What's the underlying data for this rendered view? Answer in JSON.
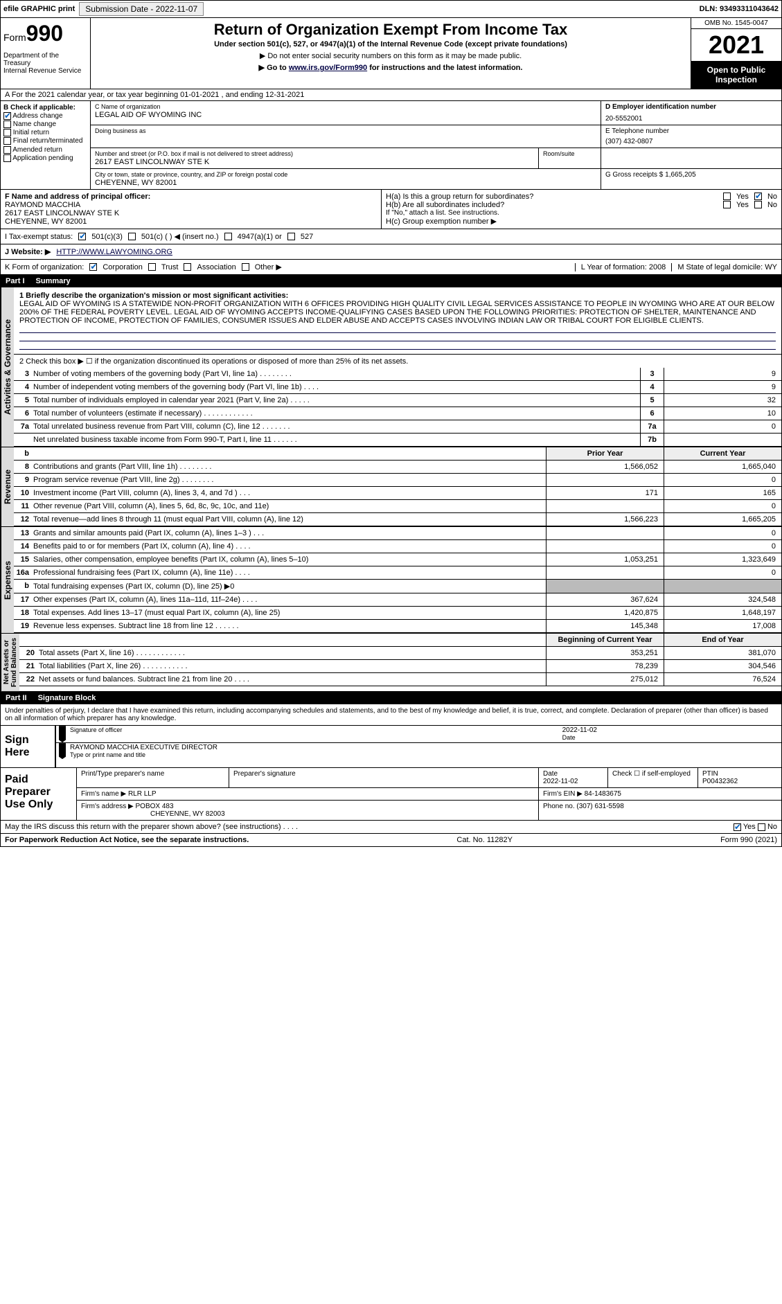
{
  "topbar": {
    "efile": "efile GRAPHIC print",
    "submission_label": "Submission Date - 2022-11-07",
    "dln": "DLN: 93493311043642"
  },
  "header": {
    "form_word": "Form",
    "form_num": "990",
    "dept": "Department of the Treasury\nInternal Revenue Service",
    "title": "Return of Organization Exempt From Income Tax",
    "subtitle": "Under section 501(c), 527, or 4947(a)(1) of the Internal Revenue Code (except private foundations)",
    "note1": "▶ Do not enter social security numbers on this form as it may be made public.",
    "note2_pre": "▶ Go to ",
    "note2_link": "www.irs.gov/Form990",
    "note2_post": " for instructions and the latest information.",
    "omb": "OMB No. 1545-0047",
    "year": "2021",
    "open": "Open to Public Inspection"
  },
  "taxyear": "A For the 2021 calendar year, or tax year beginning 01-01-2021  , and ending 12-31-2021",
  "boxB": {
    "label": "B Check if applicable:",
    "items": [
      "Address change",
      "Name change",
      "Initial return",
      "Final return/terminated",
      "Amended return",
      "Application pending"
    ],
    "checked": [
      true,
      false,
      false,
      false,
      false,
      false
    ]
  },
  "boxC": {
    "name_label": "C Name of organization",
    "name": "LEGAL AID OF WYOMING INC",
    "dba_label": "Doing business as",
    "dba": "",
    "street_label": "Number and street (or P.O. box if mail is not delivered to street address)",
    "street": "2617 EAST LINCOLNWAY STE K",
    "room_label": "Room/suite",
    "city_label": "City or town, state or province, country, and ZIP or foreign postal code",
    "city": "CHEYENNE, WY  82001"
  },
  "boxD": {
    "label": "D Employer identification number",
    "value": "20-5552001"
  },
  "boxE": {
    "label": "E Telephone number",
    "value": "(307) 432-0807"
  },
  "boxG": {
    "label": "G Gross receipts $",
    "value": "1,665,205"
  },
  "officer": {
    "label": "F  Name and address of principal officer:",
    "name": "RAYMOND MACCHIA",
    "addr1": "2617 EAST LINCOLNWAY STE K",
    "addr2": "CHEYENNE, WY  82001"
  },
  "boxH": {
    "ha": "H(a)  Is this a group return for subordinates?",
    "hb": "H(b)  Are all subordinates included?",
    "hb_note": "If \"No,\" attach a list. See instructions.",
    "hc": "H(c)  Group exemption number ▶",
    "yes": "Yes",
    "no": "No"
  },
  "status": {
    "label": "I  Tax-exempt status:",
    "opts": [
      "501(c)(3)",
      "501(c) (  ) ◀ (insert no.)",
      "4947(a)(1) or",
      "527"
    ]
  },
  "website": {
    "label": "J  Website: ▶",
    "value": "HTTP://WWW.LAWYOMING.ORG"
  },
  "korg": {
    "k": "K Form of organization:",
    "opts": [
      "Corporation",
      "Trust",
      "Association",
      "Other ▶"
    ],
    "l_label": "L Year of formation:",
    "l_val": "2008",
    "m_label": "M State of legal domicile:",
    "m_val": "WY"
  },
  "part1": {
    "no": "Part I",
    "title": "Summary"
  },
  "mission": {
    "lead": "1  Briefly describe the organization's mission or most significant activities:",
    "text": "LEGAL AID OF WYOMING IS A STATEWIDE NON-PROFIT ORGANIZATION WITH 6 OFFICES PROVIDING HIGH QUALITY CIVIL LEGAL SERVICES ASSISTANCE TO PEOPLE IN WYOMING WHO ARE AT OUR BELOW 200% OF THE FEDERAL POVERTY LEVEL. LEGAL AID OF WYOMING ACCEPTS INCOME-QUALIFYING CASES BASED UPON THE FOLLOWING PRIORITIES: PROTECTION OF SHELTER, MAINTENANCE AND PROTECTION OF INCOME, PROTECTION OF FAMILIES, CONSUMER ISSUES AND ELDER ABUSE AND ACCEPTS CASES INVOLVING INDIAN LAW OR TRIBAL COURT FOR ELIGIBLE CLIENTS."
  },
  "line2": "2  Check this box ▶ ☐ if the organization discontinued its operations or disposed of more than 25% of its net assets.",
  "gov_rows": [
    {
      "n": "3",
      "d": "Number of voting members of the governing body (Part VI, line 1a)  .   .   .   .   .   .   .   .",
      "box": "3",
      "v": "9"
    },
    {
      "n": "4",
      "d": "Number of independent voting members of the governing body (Part VI, line 1b)  .   .   .   .",
      "box": "4",
      "v": "9"
    },
    {
      "n": "5",
      "d": "Total number of individuals employed in calendar year 2021 (Part V, line 2a)  .   .   .   .   .",
      "box": "5",
      "v": "32"
    },
    {
      "n": "6",
      "d": "Total number of volunteers (estimate if necessary)  .   .   .   .   .   .   .   .   .   .   .   .",
      "box": "6",
      "v": "10"
    },
    {
      "n": "7a",
      "d": "Total unrelated business revenue from Part VIII, column (C), line 12  .   .   .   .   .   .   .",
      "box": "7a",
      "v": "0"
    },
    {
      "n": "",
      "d": "Net unrelated business taxable income from Form 990-T, Part I, line 11  .   .   .   .   .   .",
      "box": "7b",
      "v": ""
    }
  ],
  "fin_headers": {
    "b": "b",
    "prior": "Prior Year",
    "curr": "Current Year"
  },
  "rev_rows": [
    {
      "n": "8",
      "d": "Contributions and grants (Part VIII, line 1h)  .   .   .   .   .   .   .   .",
      "p": "1,566,052",
      "c": "1,665,040"
    },
    {
      "n": "9",
      "d": "Program service revenue (Part VIII, line 2g)  .   .   .   .   .   .   .   .",
      "p": "",
      "c": "0"
    },
    {
      "n": "10",
      "d": "Investment income (Part VIII, column (A), lines 3, 4, and 7d )  .   .   .",
      "p": "171",
      "c": "165"
    },
    {
      "n": "11",
      "d": "Other revenue (Part VIII, column (A), lines 5, 6d, 8c, 9c, 10c, and 11e)",
      "p": "",
      "c": "0"
    },
    {
      "n": "12",
      "d": "Total revenue—add lines 8 through 11 (must equal Part VIII, column (A), line 12)",
      "p": "1,566,223",
      "c": "1,665,205"
    }
  ],
  "exp_rows": [
    {
      "n": "13",
      "d": "Grants and similar amounts paid (Part IX, column (A), lines 1–3 )  .   .   .",
      "p": "",
      "c": "0"
    },
    {
      "n": "14",
      "d": "Benefits paid to or for members (Part IX, column (A), line 4)  .   .   .   .",
      "p": "",
      "c": "0"
    },
    {
      "n": "15",
      "d": "Salaries, other compensation, employee benefits (Part IX, column (A), lines 5–10)",
      "p": "1,053,251",
      "c": "1,323,649"
    },
    {
      "n": "16a",
      "d": "Professional fundraising fees (Part IX, column (A), line 11e)  .   .   .   .",
      "p": "",
      "c": "0"
    },
    {
      "n": "b",
      "d": "Total fundraising expenses (Part IX, column (D), line 25) ▶0",
      "p": "GREY",
      "c": "GREY"
    },
    {
      "n": "17",
      "d": "Other expenses (Part IX, column (A), lines 11a–11d, 11f–24e)  .   .   .   .",
      "p": "367,624",
      "c": "324,548"
    },
    {
      "n": "18",
      "d": "Total expenses. Add lines 13–17 (must equal Part IX, column (A), line 25)",
      "p": "1,420,875",
      "c": "1,648,197"
    },
    {
      "n": "19",
      "d": "Revenue less expenses. Subtract line 18 from line 12  .   .   .   .   .   .",
      "p": "145,348",
      "c": "17,008"
    }
  ],
  "na_headers": {
    "prior": "Beginning of Current Year",
    "curr": "End of Year"
  },
  "na_rows": [
    {
      "n": "20",
      "d": "Total assets (Part X, line 16)  .   .   .   .   .   .   .   .   .   .   .   .",
      "p": "353,251",
      "c": "381,070"
    },
    {
      "n": "21",
      "d": "Total liabilities (Part X, line 26)  .   .   .   .   .   .   .   .   .   .   .",
      "p": "78,239",
      "c": "304,546"
    },
    {
      "n": "22",
      "d": "Net assets or fund balances. Subtract line 21 from line 20  .   .   .   .",
      "p": "275,012",
      "c": "76,524"
    }
  ],
  "vert": {
    "gov": "Activities & Governance",
    "rev": "Revenue",
    "exp": "Expenses",
    "na": "Net Assets or\nFund Balances"
  },
  "part2": {
    "no": "Part II",
    "title": "Signature Block"
  },
  "sig": {
    "perjury": "Under penalties of perjury, I declare that I have examined this return, including accompanying schedules and statements, and to the best of my knowledge and belief, it is true, correct, and complete. Declaration of preparer (other than officer) is based on all information of which preparer has any knowledge.",
    "sign_here": "Sign Here",
    "sig_officer": "Signature of officer",
    "date_label": "Date",
    "date": "2022-11-02",
    "name": "RAYMOND MACCHIA  EXECUTIVE DIRECTOR",
    "name_label": "Type or print name and title"
  },
  "prep": {
    "label": "Paid Preparer Use Only",
    "h_name": "Print/Type preparer's name",
    "h_sig": "Preparer's signature",
    "h_date": "Date",
    "h_date_v": "2022-11-02",
    "h_self": "Check ☐ if self-employed",
    "h_ptin": "PTIN",
    "ptin": "P00432362",
    "firm_name_lbl": "Firm's name  ▶",
    "firm_name": "RLR LLP",
    "firm_ein_lbl": "Firm's EIN ▶",
    "firm_ein": "84-1483675",
    "firm_addr_lbl": "Firm's address ▶",
    "firm_addr": "POBOX 483",
    "firm_city": "CHEYENNE, WY  82003",
    "phone_lbl": "Phone no.",
    "phone": "(307) 631-5598"
  },
  "footer": {
    "discuss": "May the IRS discuss this return with the preparer shown above? (see instructions)  .   .   .   .",
    "yes": "Yes",
    "no": "No",
    "pra": "For Paperwork Reduction Act Notice, see the separate instructions.",
    "cat": "Cat. No. 11282Y",
    "form": "Form 990 (2021)"
  }
}
